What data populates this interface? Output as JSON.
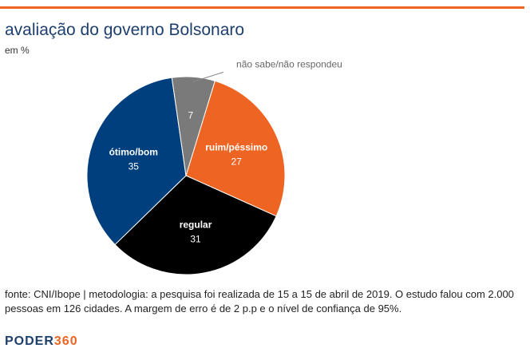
{
  "header": {
    "title": "avaliação do governo Bolsonaro",
    "subtitle": "em %"
  },
  "chart_data": {
    "type": "pie",
    "title": "avaliação do governo Bolsonaro",
    "subtitle": "em %",
    "slices": [
      {
        "label": "ruim/péssimo",
        "value": 27,
        "color": "#ee6422",
        "label_color": "#ffffff"
      },
      {
        "label": "regular",
        "value": 31,
        "color": "#000000",
        "label_color": "#ffffff"
      },
      {
        "label": "ótimo/bom",
        "value": 35,
        "color": "#003f7d",
        "label_color": "#ffffff"
      },
      {
        "label": "não sabe/não respondeu",
        "value": 7,
        "color": "#7a7a7a",
        "label_color": "#ffffff",
        "label_outside": true
      }
    ]
  },
  "footer": {
    "source": "fonte: CNI/Ibope | metodologia: a pesquisa foi realizada de 15 a 15 de abril de 2019. O estudo falou com 2.000 pessoas em 126 cidades. A margem de erro é de 2 p.p e o nível de confiança de 95%.",
    "logo_part1": "PODER",
    "logo_part2": "360"
  }
}
